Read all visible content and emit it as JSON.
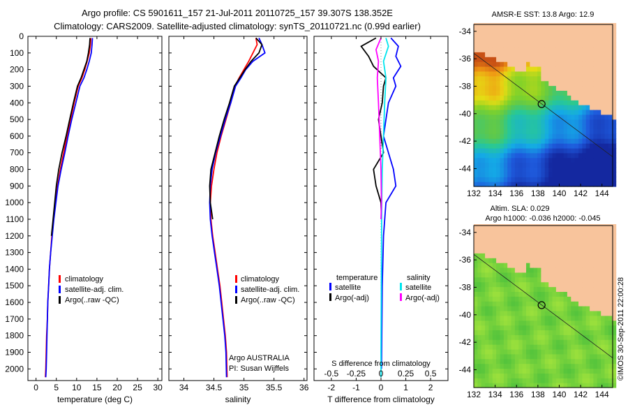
{
  "header": {
    "line1": "Argo profile: CS 5901611_157 21-Jul-2011 20110725_157 39.307S 138.352E",
    "line2": "Climatology: CARS2009. Satellite-adjusted climatology: synTS_20110721.nc (0.99d earlier)"
  },
  "colors": {
    "climatology": "#ff0000",
    "satellite": "#0000ff",
    "argo": "#000000",
    "sal_satellite": "#00e5ee",
    "sal_argo": "#ff00ff",
    "land": "#f8c49c"
  },
  "chart_data": [
    {
      "type": "line",
      "name": "temperature",
      "xlabel": "temperature (deg C)",
      "ylabel": "",
      "xlim": [
        -2,
        31
      ],
      "ylim": [
        2070,
        0
      ],
      "xticks": [
        0,
        5,
        10,
        15,
        20,
        25,
        30
      ],
      "yticks": [
        0,
        100,
        200,
        300,
        400,
        500,
        600,
        700,
        800,
        900,
        1000,
        1100,
        1200,
        1300,
        1400,
        1500,
        1600,
        1700,
        1800,
        1900,
        2000
      ],
      "legend": [
        "climatology",
        "satellite-adj. clim.",
        "Argo(..raw -QC)"
      ],
      "series": [
        {
          "name": "climatology",
          "color": "#ff0000",
          "x": [
            13.5,
            13.4,
            13.1,
            12.6,
            12.0,
            11.3,
            10.4,
            9.4,
            8.5,
            7.6,
            6.8,
            6.0,
            5.3,
            4.8,
            4.3,
            3.9,
            3.6,
            3.3,
            3.1,
            2.9,
            2.8,
            2.6,
            2.5,
            2.4,
            2.3
          ],
          "y": [
            10,
            50,
            100,
            150,
            200,
            250,
            300,
            400,
            500,
            600,
            700,
            800,
            900,
            1000,
            1100,
            1200,
            1300,
            1400,
            1500,
            1600,
            1700,
            1800,
            1900,
            2000,
            2050
          ]
        },
        {
          "name": "satellite-adj. clim.",
          "color": "#0000ff",
          "x": [
            13.9,
            13.8,
            13.6,
            13.1,
            12.5,
            11.8,
            10.8,
            9.8,
            8.8,
            7.9,
            7.1,
            6.2,
            5.4,
            4.9,
            4.4,
            4.0,
            3.6,
            3.3,
            3.1,
            2.9,
            2.8,
            2.7,
            2.6,
            2.5,
            2.4
          ],
          "y": [
            10,
            50,
            100,
            150,
            200,
            250,
            300,
            400,
            500,
            600,
            700,
            800,
            900,
            1000,
            1100,
            1200,
            1300,
            1400,
            1500,
            1600,
            1700,
            1800,
            1900,
            2000,
            2050
          ]
        },
        {
          "name": "Argo(..raw -QC)",
          "color": "#000000",
          "x": [
            13.3,
            13.2,
            12.9,
            12.5,
            11.8,
            11.1,
            10.2,
            9.2,
            8.3,
            7.4,
            6.4,
            5.6,
            5.0,
            4.6,
            4.2,
            3.8
          ],
          "y": [
            10,
            50,
            100,
            150,
            200,
            250,
            300,
            400,
            500,
            600,
            700,
            800,
            900,
            1000,
            1100,
            1200
          ]
        }
      ]
    },
    {
      "type": "line",
      "name": "salinity",
      "xlabel": "salinity",
      "xlim": [
        33.75,
        36.05
      ],
      "ylim": [
        2070,
        0
      ],
      "xticks": [
        34,
        34.5,
        35,
        35.5,
        36
      ],
      "legend": [
        "climatology",
        "satellite-adj. clim.",
        "Argo(..raw -QC)"
      ],
      "annotations": [
        "Argo AUSTRALIA",
        "PI: Susan Wijffels"
      ],
      "series": [
        {
          "name": "climatology",
          "color": "#ff0000",
          "x": [
            35.2,
            35.22,
            35.15,
            35.08,
            35.0,
            34.92,
            34.85,
            34.78,
            34.7,
            34.62,
            34.55,
            34.5,
            34.46,
            34.44,
            34.45,
            34.48,
            34.52,
            34.56,
            34.6,
            34.63,
            34.66,
            34.69,
            34.71,
            34.72
          ],
          "y": [
            10,
            50,
            100,
            150,
            200,
            250,
            300,
            400,
            500,
            600,
            700,
            800,
            900,
            1000,
            1100,
            1200,
            1300,
            1400,
            1500,
            1600,
            1700,
            1800,
            1900,
            2050
          ]
        },
        {
          "name": "satellite-adj. clim.",
          "color": "#0000ff",
          "x": [
            35.25,
            35.3,
            35.35,
            35.15,
            35.03,
            34.95,
            34.86,
            34.78,
            34.69,
            34.61,
            34.53,
            34.47,
            34.44,
            34.43,
            34.44,
            34.47,
            34.51,
            34.55,
            34.59,
            34.62,
            34.65,
            34.68,
            34.7,
            34.71
          ],
          "y": [
            10,
            50,
            100,
            150,
            200,
            250,
            300,
            400,
            500,
            600,
            700,
            800,
            900,
            1000,
            1100,
            1200,
            1300,
            1400,
            1500,
            1600,
            1700,
            1800,
            1900,
            2050
          ]
        },
        {
          "name": "Argo(..raw -QC)",
          "color": "#000000",
          "x": [
            35.2,
            35.3,
            35.25,
            35.12,
            35.02,
            34.93,
            34.84,
            34.76,
            34.67,
            34.59,
            34.52,
            34.45,
            34.43,
            34.44,
            34.48
          ],
          "y": [
            10,
            50,
            100,
            150,
            200,
            250,
            300,
            400,
            500,
            600,
            700,
            800,
            900,
            1000,
            1100
          ]
        }
      ]
    },
    {
      "type": "line",
      "name": "differences",
      "xlabel": "T difference from climatology",
      "top_label": "S difference from climatology",
      "xlim": [
        -2.7,
        2.7
      ],
      "ylim": [
        2070,
        0
      ],
      "xticks": [
        -2,
        -1,
        0,
        1,
        2
      ],
      "top_xticks": [
        "-0.5",
        "-0.25",
        "0",
        "0.25",
        "0.5"
      ],
      "legend_titles": [
        "temperature",
        "salinity"
      ],
      "legend": [
        "satellite",
        "Argo(-adj)",
        "satellite",
        "Argo(-adj)"
      ],
      "series": [
        {
          "name": "satellite",
          "color": "#0000ff",
          "x": [
            0.4,
            0.7,
            0.6,
            0.8,
            0.5,
            0.6,
            0.3,
            0.2,
            0.1,
            0.3,
            0.5,
            0.6,
            0.2,
            0.1,
            0.05,
            0.03,
            0.02
          ],
          "y": [
            10,
            60,
            120,
            180,
            250,
            300,
            400,
            500,
            600,
            700,
            800,
            900,
            1000,
            1200,
            1500,
            1800,
            2000
          ]
        },
        {
          "name": "Argo(-adj)",
          "color": "#000000",
          "x": [
            -0.2,
            -0.8,
            -0.5,
            -0.3,
            0.2,
            0.1,
            0.05,
            -0.1,
            0.0,
            0.1,
            -0.3,
            -0.2,
            0.0,
            0.02
          ],
          "y": [
            10,
            60,
            120,
            180,
            250,
            300,
            400,
            500,
            600,
            700,
            800,
            900,
            1000,
            1100
          ]
        },
        {
          "name": "satellite",
          "color": "#00e5ee",
          "x": [
            0.2,
            0.3,
            0.1,
            0.2,
            0.15,
            0.1,
            0.05,
            0.03,
            0.02,
            0.01,
            0.0,
            0.0
          ],
          "y": [
            10,
            60,
            150,
            250,
            400,
            600,
            800,
            1000,
            1300,
            1600,
            1900,
            2050
          ]
        },
        {
          "name": "Argo(-adj)",
          "color": "#ff00ff",
          "x": [
            0.0,
            -0.2,
            -0.1,
            -0.15,
            -0.1,
            -0.05,
            0.0,
            0.02,
            0.0
          ],
          "y": [
            10,
            80,
            150,
            250,
            400,
            600,
            800,
            1000,
            1100
          ]
        }
      ]
    },
    {
      "type": "heatmap",
      "name": "sst-map",
      "title": "AMSR-E SST: 13.8 Argo: 12.9",
      "xlim": [
        132,
        145
      ],
      "ylim": [
        -45.3,
        -33.5
      ],
      "xticks": [
        132,
        134,
        136,
        138,
        140,
        142,
        144
      ],
      "yticks": [
        -34,
        -36,
        -38,
        -40,
        -42,
        -44
      ],
      "marker": {
        "lon": 138.35,
        "lat": -39.3
      }
    },
    {
      "type": "heatmap",
      "name": "sla-map",
      "title": "Altim. SLA: 0.029",
      "subtitle": "Argo h1000: -0.036 h2000: -0.045",
      "xlim": [
        132,
        145
      ],
      "ylim": [
        -45.3,
        -33.5
      ],
      "xticks": [
        132,
        134,
        136,
        138,
        140,
        142,
        144
      ],
      "yticks": [
        -34,
        -36,
        -38,
        -40,
        -42,
        -44
      ],
      "marker": {
        "lon": 138.35,
        "lat": -39.3
      }
    }
  ],
  "footer": {
    "credit": "©IMOS 30-Sep-2011 22:00:28"
  }
}
